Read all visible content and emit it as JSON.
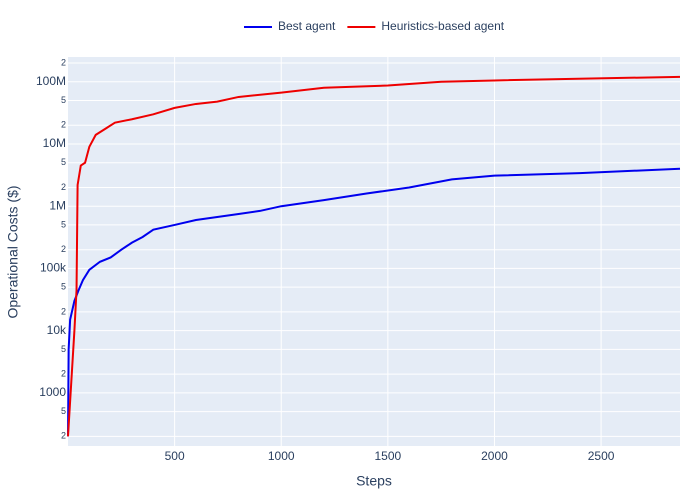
{
  "chart_data": {
    "type": "line",
    "x_label": "Steps",
    "y_label": "Operational Costs ($)",
    "log_y": true,
    "grid": true,
    "legend_position": "top",
    "xlim": [
      0,
      2870
    ],
    "ylim": [
      140,
      250000000
    ],
    "xticks": [
      500,
      1000,
      1500,
      2000,
      2500
    ],
    "yticks": [
      {
        "value": 200,
        "label": "2"
      },
      {
        "value": 500,
        "label": "5"
      },
      1000,
      {
        "value": 2000,
        "label": "2"
      },
      {
        "value": 5000,
        "label": "5"
      },
      {
        "value": 10000,
        "label": "10k"
      },
      {
        "value": 20000,
        "label": "2"
      },
      {
        "value": 50000,
        "label": "5"
      },
      {
        "value": 100000,
        "label": "100k"
      },
      {
        "value": 200000,
        "label": "2"
      },
      {
        "value": 500000,
        "label": "5"
      },
      {
        "value": 1000000,
        "label": "1M"
      },
      {
        "value": 2000000,
        "label": "2"
      },
      {
        "value": 5000000,
        "label": "5"
      },
      {
        "value": 10000000,
        "label": "10M"
      },
      {
        "value": 20000000,
        "label": "2"
      },
      {
        "value": 50000000,
        "label": "5"
      },
      {
        "value": 100000000,
        "label": "100M"
      },
      {
        "value": 200000000,
        "label": "2"
      }
    ],
    "series": [
      {
        "name": "Best agent",
        "color": "#0000ee",
        "x": [
          0,
          3,
          10,
          30,
          50,
          70,
          100,
          150,
          200,
          250,
          300,
          350,
          400,
          500,
          600,
          800,
          900,
          1000,
          1200,
          1400,
          1600,
          1800,
          2000,
          2400,
          2870
        ],
        "values": [
          200,
          5000,
          15000,
          30000,
          45000,
          65000,
          95000,
          128000,
          150000,
          200000,
          260000,
          320000,
          420000,
          500000,
          600000,
          750000,
          840000,
          1000000,
          1250000,
          1600000,
          2000000,
          2700000,
          3100000,
          3400000,
          4000000
        ]
      },
      {
        "name": "Heuristics-based agent",
        "color": "#ee0000",
        "x": [
          0,
          30,
          40,
          45,
          60,
          80,
          100,
          130,
          180,
          220,
          300,
          400,
          500,
          600,
          700,
          800,
          1000,
          1200,
          1500,
          1750,
          2000,
          2870
        ],
        "values": [
          200,
          10000,
          45000,
          2200000,
          4500000,
          5000000,
          9000000,
          14000000,
          18000000,
          22000000,
          25000000,
          30000000,
          38000000,
          44000000,
          48000000,
          57000000,
          67000000,
          80000000,
          87000000,
          100000000,
          105000000,
          120000000
        ]
      }
    ]
  }
}
